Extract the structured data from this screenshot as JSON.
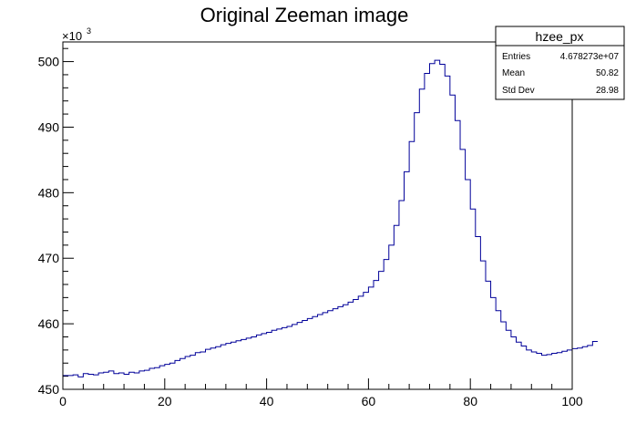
{
  "chart_data": {
    "type": "line",
    "title": "Original Zeeman image",
    "xlabel": "",
    "ylabel": "",
    "xlim": [
      0,
      100
    ],
    "ylim": [
      450,
      503
    ],
    "x_ticks": [
      "0",
      "20",
      "40",
      "60",
      "80",
      "100"
    ],
    "y_ticks": [
      "450",
      "460",
      "470",
      "480",
      "490",
      "500"
    ],
    "y_multiplier": "×10",
    "y_multiplier_exp": "3",
    "series_color": "#000099",
    "bin_width": 1,
    "values": [
      452.1,
      452.1,
      452.2,
      451.9,
      452.4,
      452.3,
      452.2,
      452.5,
      452.6,
      452.8,
      452.4,
      452.5,
      452.3,
      452.6,
      452.5,
      452.8,
      452.9,
      453.2,
      453.3,
      453.6,
      453.8,
      454.0,
      454.4,
      454.7,
      455.0,
      455.2,
      455.6,
      455.7,
      456.1,
      456.3,
      456.5,
      456.8,
      457.0,
      457.2,
      457.4,
      457.6,
      457.8,
      458.0,
      458.3,
      458.5,
      458.7,
      459.0,
      459.2,
      459.4,
      459.6,
      459.9,
      460.2,
      460.5,
      460.8,
      461.1,
      461.4,
      461.7,
      462.0,
      462.3,
      462.6,
      462.9,
      463.3,
      463.7,
      464.2,
      464.8,
      465.6,
      466.6,
      468.0,
      469.8,
      472.0,
      475.0,
      478.8,
      483.2,
      487.8,
      492.2,
      495.8,
      498.2,
      499.7,
      500.2,
      499.6,
      497.8,
      494.9,
      491.0,
      486.6,
      482.0,
      477.5,
      473.3,
      469.6,
      466.5,
      464.0,
      462.0,
      460.3,
      459.0,
      458.0,
      457.2,
      456.6,
      456.0,
      455.7,
      455.5,
      455.2,
      455.3,
      455.5,
      455.6,
      455.8,
      456.0,
      456.2,
      456.3,
      456.5,
      456.7,
      457.3
    ],
    "stats": {
      "name": "hzee_px",
      "rows": [
        {
          "label": "Entries",
          "value": "4.678273e+07"
        },
        {
          "label": "Mean",
          "value": "50.82"
        },
        {
          "label": "Std Dev",
          "value": "28.98"
        }
      ]
    }
  }
}
